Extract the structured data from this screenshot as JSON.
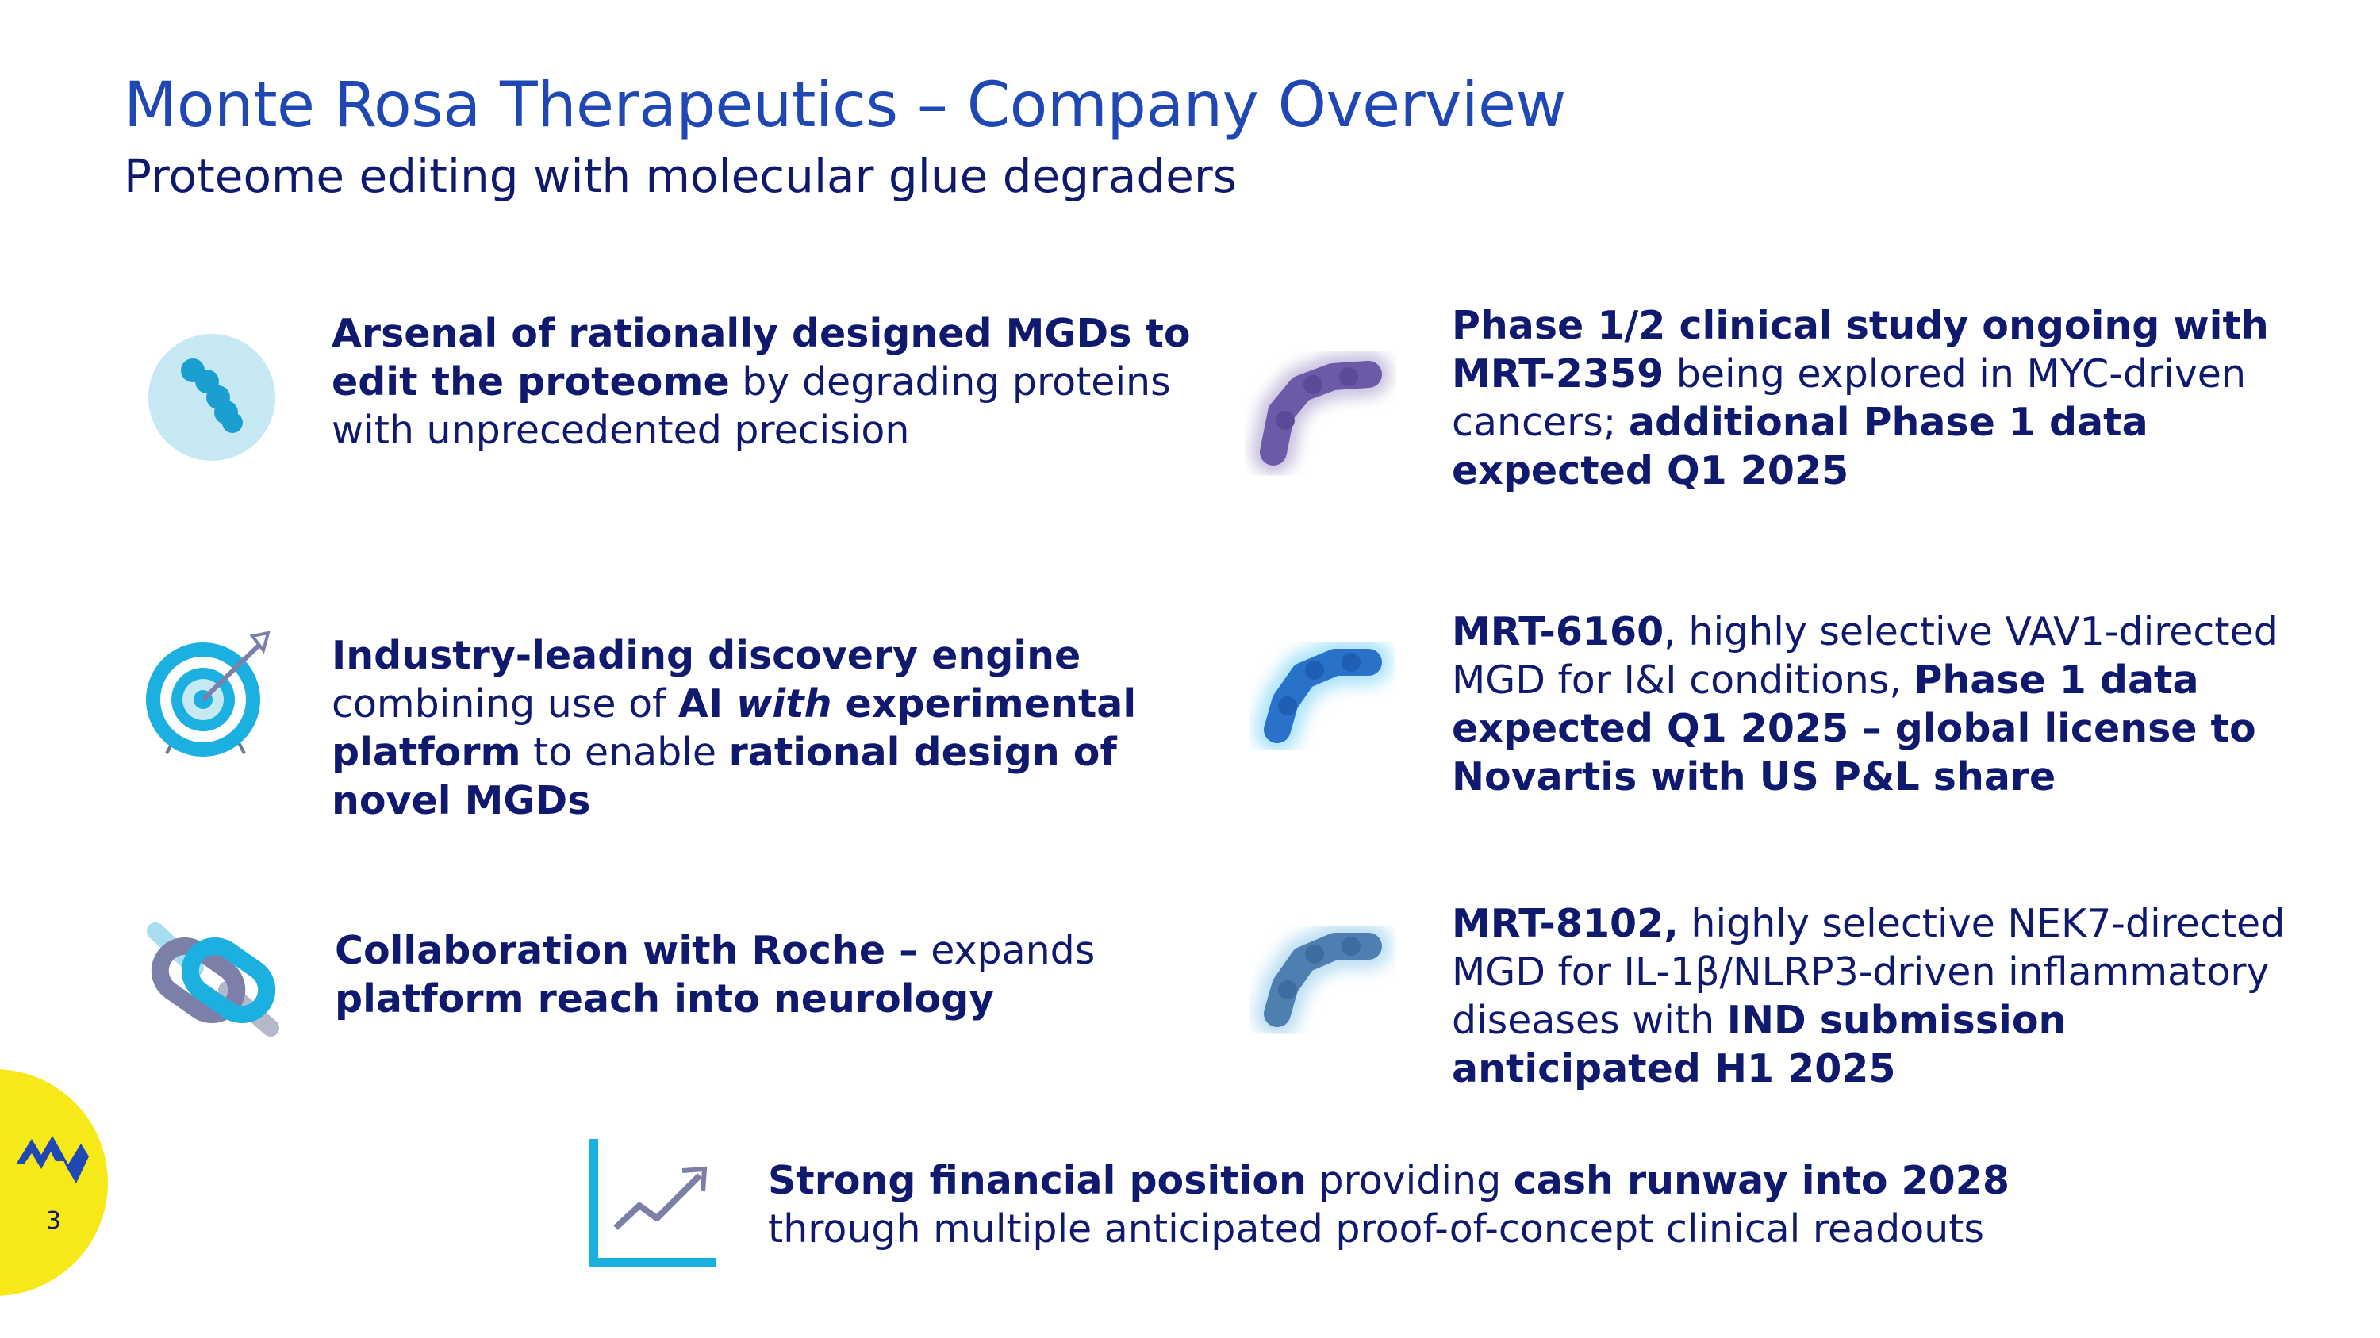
{
  "header": {
    "title": "Monte Rosa Therapeutics – Company Overview",
    "subtitle": "Proteome editing with molecular glue degraders"
  },
  "left_items": [
    {
      "icon": "molecule-chain-icon",
      "segments": [
        {
          "b": true,
          "t": "Arsenal of rationally designed MGDs to"
        },
        {
          "br": true
        },
        {
          "b": true,
          "t": "edit the proteome"
        },
        {
          "b": false,
          "t": " by degrading proteins"
        },
        {
          "br": true
        },
        {
          "b": false,
          "t": "with unprecedented precision"
        }
      ]
    },
    {
      "icon": "target-icon",
      "segments": [
        {
          "b": true,
          "t": "Industry-leading discovery engine"
        },
        {
          "br": true
        },
        {
          "b": false,
          "t": "combining use of "
        },
        {
          "b": true,
          "t": "AI "
        },
        {
          "b": true,
          "i": true,
          "t": "with"
        },
        {
          "b": true,
          "t": " experimental"
        },
        {
          "br": true
        },
        {
          "b": true,
          "t": "platform"
        },
        {
          "b": false,
          "t": " to enable "
        },
        {
          "b": true,
          "t": "rational design of"
        },
        {
          "br": true
        },
        {
          "b": true,
          "t": "novel MGDs"
        }
      ]
    },
    {
      "icon": "link-icon",
      "segments": [
        {
          "b": true,
          "t": "Collaboration with Roche –"
        },
        {
          "b": false,
          "t": " expands"
        },
        {
          "br": true
        },
        {
          "b": true,
          "t": "platform reach into neurology"
        }
      ]
    }
  ],
  "right_items": [
    {
      "icon": "purple-molecule-icon",
      "segments": [
        {
          "b": true,
          "t": "Phase 1/2 clinical study ongoing with"
        },
        {
          "br": true
        },
        {
          "b": true,
          "t": "MRT-2359"
        },
        {
          "b": false,
          "t": " being explored in MYC-driven"
        },
        {
          "br": true
        },
        {
          "b": false,
          "t": "cancers; "
        },
        {
          "b": true,
          "t": "additional Phase 1 data"
        },
        {
          "br": true
        },
        {
          "b": true,
          "t": "expected Q1 2025"
        }
      ]
    },
    {
      "icon": "blue-molecule-icon",
      "segments": [
        {
          "b": true,
          "t": "MRT-6160"
        },
        {
          "b": false,
          "t": ", highly selective VAV1-directed"
        },
        {
          "br": true
        },
        {
          "b": false,
          "t": "MGD for I&I conditions, "
        },
        {
          "b": true,
          "t": "Phase 1 data"
        },
        {
          "br": true
        },
        {
          "b": true,
          "t": "expected Q1 2025 – global license to"
        },
        {
          "br": true
        },
        {
          "b": true,
          "t": "Novartis with US P&L share"
        }
      ]
    },
    {
      "icon": "steel-blue-molecule-icon",
      "segments": [
        {
          "b": true,
          "t": "MRT-8102,"
        },
        {
          "b": false,
          "t": " highly selective NEK7-directed"
        },
        {
          "br": true
        },
        {
          "b": false,
          "t": "MGD for IL-1β/NLRP3-driven inflammatory"
        },
        {
          "br": true
        },
        {
          "b": false,
          "t": "diseases with "
        },
        {
          "b": true,
          "t": "IND submission"
        },
        {
          "br": true
        },
        {
          "b": true,
          "t": "anticipated H1 2025"
        }
      ]
    }
  ],
  "bottom_item": {
    "icon": "growth-chart-icon",
    "segments": [
      {
        "b": true,
        "t": "Strong financial position"
      },
      {
        "b": false,
        "t": " providing "
      },
      {
        "b": true,
        "t": "cash runway into 2028"
      },
      {
        "br": true
      },
      {
        "b": false,
        "t": "through multiple anticipated proof-of-concept clinical readouts"
      }
    ]
  },
  "footer": {
    "page_number": "3",
    "logo_icon": "monte-rosa-logo-icon"
  },
  "colors": {
    "title": "#1f48b4",
    "text": "#0f1a6e",
    "accent_cyan": "#1bb0e0",
    "logo_yellow": "#f7e81a"
  }
}
